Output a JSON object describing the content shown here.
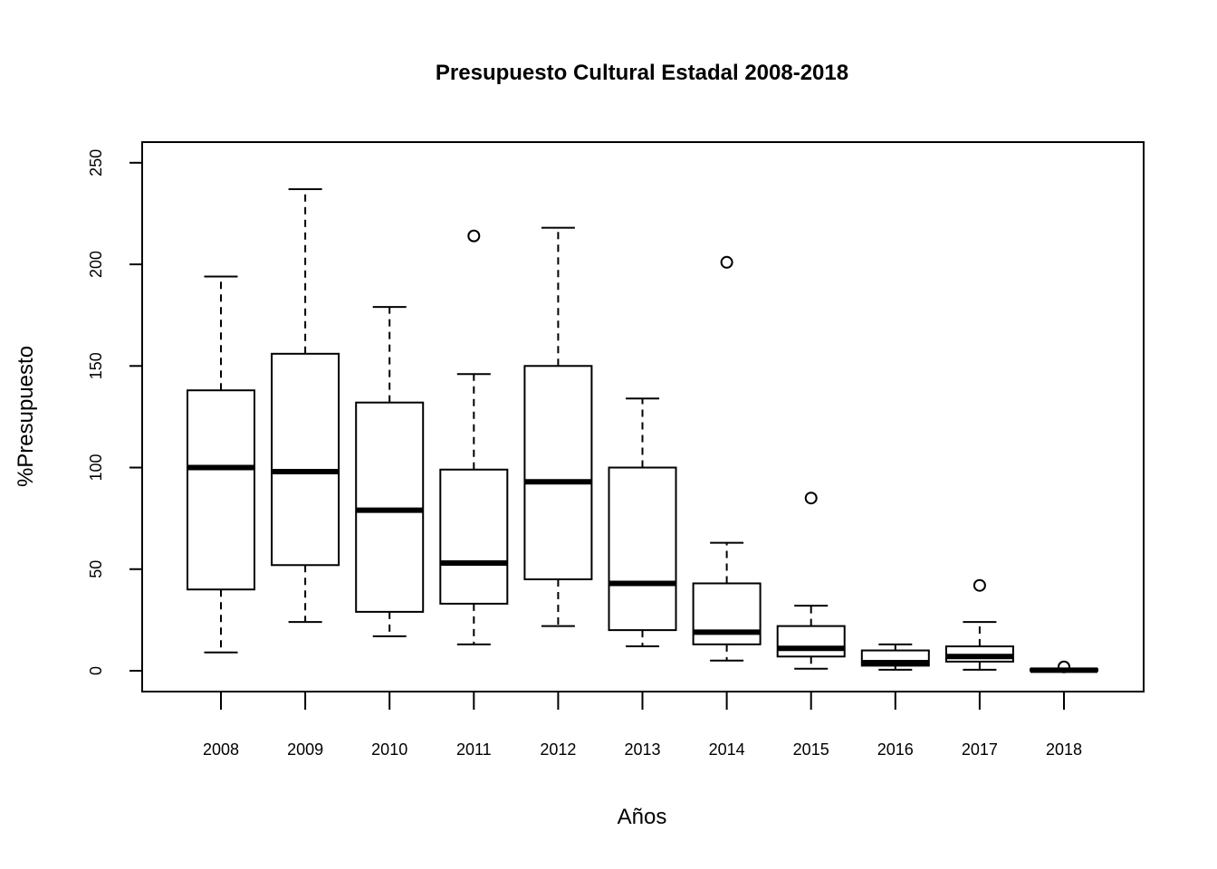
{
  "chart_data": {
    "type": "boxplot",
    "title": "Presupuesto Cultural Estadal 2008-2018",
    "xlabel": "Años",
    "ylabel": "%Presupuesto",
    "ylim": [
      -10,
      260
    ],
    "yticks": [
      0,
      50,
      100,
      150,
      200,
      250
    ],
    "categories": [
      "2008",
      "2009",
      "2010",
      "2011",
      "2012",
      "2013",
      "2014",
      "2015",
      "2016",
      "2017",
      "2018"
    ],
    "boxes": [
      {
        "category": "2008",
        "whisker_low": 9,
        "q1": 40,
        "median": 100,
        "q3": 138,
        "whisker_high": 194,
        "outliers": []
      },
      {
        "category": "2009",
        "whisker_low": 24,
        "q1": 52,
        "median": 98,
        "q3": 156,
        "whisker_high": 237,
        "outliers": []
      },
      {
        "category": "2010",
        "whisker_low": 17,
        "q1": 29,
        "median": 79,
        "q3": 132,
        "whisker_high": 179,
        "outliers": []
      },
      {
        "category": "2011",
        "whisker_low": 13,
        "q1": 33,
        "median": 53,
        "q3": 99,
        "whisker_high": 146,
        "outliers": [
          214
        ]
      },
      {
        "category": "2012",
        "whisker_low": 22,
        "q1": 45,
        "median": 93,
        "q3": 150,
        "whisker_high": 218,
        "outliers": []
      },
      {
        "category": "2013",
        "whisker_low": 12,
        "q1": 20,
        "median": 43,
        "q3": 100,
        "whisker_high": 134,
        "outliers": []
      },
      {
        "category": "2014",
        "whisker_low": 5,
        "q1": 13,
        "median": 19,
        "q3": 43,
        "whisker_high": 63,
        "outliers": [
          201
        ]
      },
      {
        "category": "2015",
        "whisker_low": 1,
        "q1": 7,
        "median": 11,
        "q3": 22,
        "whisker_high": 32,
        "outliers": [
          85
        ]
      },
      {
        "category": "2016",
        "whisker_low": 0.5,
        "q1": 2.5,
        "median": 4,
        "q3": 10,
        "whisker_high": 13,
        "outliers": []
      },
      {
        "category": "2017",
        "whisker_low": 0.5,
        "q1": 4.5,
        "median": 7,
        "q3": 12,
        "whisker_high": 24,
        "outliers": [
          42
        ]
      },
      {
        "category": "2018",
        "whisker_low": 0,
        "q1": 0,
        "median": 0.3,
        "q3": 0.8,
        "whisker_high": 1,
        "outliers": [
          1.9
        ]
      }
    ],
    "grid": false,
    "legend": "none",
    "colors": {
      "box_fill": "#ffffff",
      "stroke": "#000000"
    }
  }
}
